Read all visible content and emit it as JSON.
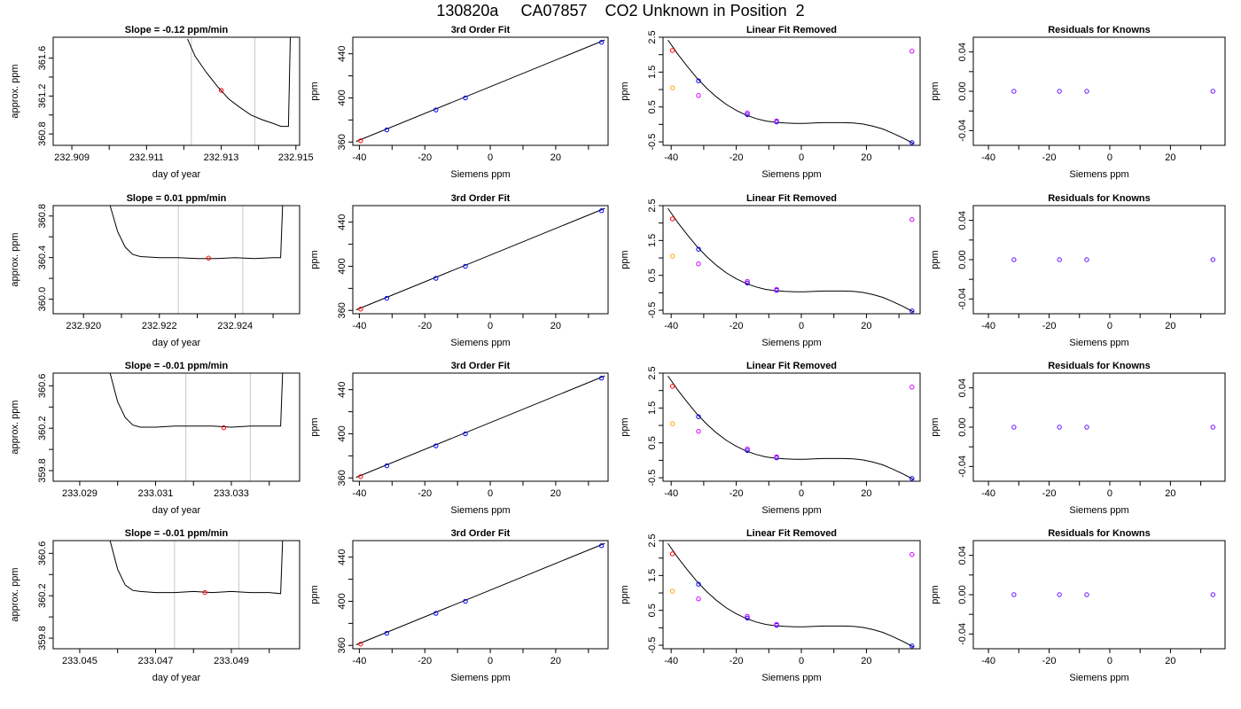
{
  "header": {
    "title": "130820a     CA07857    CO2 Unknown in Position  2"
  },
  "colors": {
    "axis": "#000000",
    "trace": "#000000",
    "window_lines": "#c8c8c8",
    "red": "#ff0000",
    "blue": "#0000ff",
    "orange": "#ffa500",
    "magenta": "#d000ff",
    "purple": "#6a0dff"
  },
  "chart_data": [
    {
      "type": "line",
      "title": "Slope =  -0.12  ppm/min",
      "xlabel": "day of year",
      "ylabel": "approx. ppm",
      "xlim": [
        232.9085,
        232.9151
      ],
      "ylim": [
        360.68,
        361.82
      ],
      "xticks": [
        "232.909",
        "232.911",
        "232.913",
        "232.915"
      ],
      "xtick_vals": [
        232.909,
        232.911,
        232.913,
        232.915
      ],
      "xminor": [
        232.91,
        232.912,
        232.914
      ],
      "yticks": [
        "360.8",
        "361.2",
        "361.6"
      ],
      "ytick_vals": [
        360.8,
        361.2,
        361.6
      ],
      "yminor": [
        361.0,
        361.4
      ],
      "vlines": [
        232.9122,
        232.9139
      ],
      "trace": {
        "x": [
          232.9121,
          232.9123,
          232.9126,
          232.9129,
          232.9132,
          232.9135,
          232.9138,
          232.9141,
          232.9144,
          232.9146,
          232.9148,
          232.91485
        ],
        "y": [
          361.8,
          361.62,
          361.45,
          361.3,
          361.17,
          361.08,
          361.0,
          360.95,
          360.91,
          360.88,
          360.88,
          361.82
        ]
      },
      "marker": {
        "x": 232.913,
        "y": 361.26
      }
    },
    {
      "type": "line",
      "title": "Slope =  0.01  ppm/min",
      "xlabel": "day of year",
      "ylabel": "approx. ppm",
      "xlim": [
        232.9192,
        232.9257
      ],
      "ylim": [
        359.86,
        360.9
      ],
      "xticks": [
        "232.920",
        "232.922",
        "232.924"
      ],
      "xtick_vals": [
        232.92,
        232.922,
        232.924
      ],
      "xminor": [
        232.921,
        232.923,
        232.925
      ],
      "yticks": [
        "360.0",
        "360.4",
        "360.8"
      ],
      "ytick_vals": [
        360.0,
        360.4,
        360.8
      ],
      "yminor": [
        360.2,
        360.6
      ],
      "vlines": [
        232.9225,
        232.9242
      ],
      "trace": {
        "x": [
          232.9207,
          232.9209,
          232.9211,
          232.9213,
          232.9215,
          232.922,
          232.9225,
          232.923,
          232.9235,
          232.924,
          232.9245,
          232.925,
          232.9252,
          232.92525
        ],
        "y": [
          360.9,
          360.65,
          360.5,
          360.43,
          360.41,
          360.4,
          360.4,
          360.39,
          360.39,
          360.4,
          360.39,
          360.4,
          360.4,
          360.9
        ]
      },
      "marker": {
        "x": 232.9233,
        "y": 360.395
      }
    },
    {
      "type": "line",
      "title": "Slope =  -0.01  ppm/min",
      "xlabel": "day of year",
      "ylabel": "approx. ppm",
      "xlim": [
        233.0283,
        233.0348
      ],
      "ylim": [
        359.7,
        360.72
      ],
      "xticks": [
        "233.029",
        "233.031",
        "233.033"
      ],
      "xtick_vals": [
        233.029,
        233.031,
        233.033
      ],
      "xminor": [
        233.03,
        233.032,
        233.034
      ],
      "yticks": [
        "359.8",
        "360.2",
        "360.6"
      ],
      "ytick_vals": [
        359.8,
        360.2,
        360.6
      ],
      "yminor": [
        360.0,
        360.4
      ],
      "vlines": [
        233.0318,
        233.0335
      ],
      "trace": {
        "x": [
          233.0298,
          233.03,
          233.0302,
          233.0304,
          233.0306,
          233.031,
          233.0315,
          233.032,
          233.0325,
          233.033,
          233.0335,
          233.034,
          233.0343,
          233.03435
        ],
        "y": [
          360.72,
          360.45,
          360.3,
          360.23,
          360.21,
          360.21,
          360.22,
          360.22,
          360.22,
          360.21,
          360.22,
          360.22,
          360.22,
          360.72
        ]
      },
      "marker": {
        "x": 233.0328,
        "y": 360.205
      }
    },
    {
      "type": "line",
      "title": "Slope =  -0.01  ppm/min",
      "xlabel": "day of year",
      "ylabel": "approx. ppm",
      "xlim": [
        233.0443,
        233.0508
      ],
      "ylim": [
        359.7,
        360.72
      ],
      "xticks": [
        "233.045",
        "233.047",
        "233.049"
      ],
      "xtick_vals": [
        233.045,
        233.047,
        233.049
      ],
      "xminor": [
        233.046,
        233.048,
        233.05
      ],
      "yticks": [
        "359.8",
        "360.2",
        "360.6"
      ],
      "ytick_vals": [
        359.8,
        360.2,
        360.6
      ],
      "yminor": [
        360.0,
        360.4
      ],
      "vlines": [
        233.0475,
        233.0492
      ],
      "trace": {
        "x": [
          233.0458,
          233.046,
          233.0462,
          233.0464,
          233.0466,
          233.047,
          233.0475,
          233.048,
          233.0485,
          233.049,
          233.0495,
          233.05,
          233.0503,
          233.05035
        ],
        "y": [
          360.72,
          360.45,
          360.3,
          360.25,
          360.24,
          360.23,
          360.23,
          360.24,
          360.23,
          360.24,
          360.23,
          360.23,
          360.22,
          360.72
        ]
      },
      "marker": {
        "x": 233.0483,
        "y": 360.23
      }
    },
    {
      "type": "scatter",
      "title": "3rd Order Fit",
      "xlabel": "Siemens ppm",
      "ylabel": "ppm",
      "xlim": [
        -42,
        36
      ],
      "ylim": [
        357,
        455
      ],
      "xticks": [
        "-40",
        "-20",
        "0",
        "20"
      ],
      "xtick_vals": [
        -40,
        -20,
        0,
        20
      ],
      "xminor": [
        -30,
        -10,
        10,
        30
      ],
      "yticks": [
        "360",
        "400",
        "440"
      ],
      "ytick_vals": [
        360,
        400,
        440
      ],
      "yminor": [
        380,
        420
      ],
      "fit_line": {
        "x": [
          -41,
          35
        ],
        "y": [
          360.5,
          452.5
        ]
      },
      "points": [
        {
          "x": -39.6,
          "y": 361.2,
          "color": "red"
        },
        {
          "x": -31.6,
          "y": 371.0,
          "color": "blue"
        },
        {
          "x": -16.6,
          "y": 389.1,
          "color": "blue"
        },
        {
          "x": -7.6,
          "y": 400.0,
          "color": "blue"
        },
        {
          "x": 34.0,
          "y": 450.4,
          "color": "blue"
        }
      ]
    },
    {
      "type": "scatter",
      "title": "Linear Fit Removed",
      "xlabel": "Siemens ppm",
      "ylabel": "ppm",
      "xlim": [
        -42.5,
        36.5
      ],
      "ylim": [
        -0.6,
        2.5
      ],
      "xticks": [
        "-40",
        "-20",
        "0",
        "20"
      ],
      "xtick_vals": [
        -40,
        -20,
        0,
        20
      ],
      "xminor": [
        -30,
        -10,
        10,
        30
      ],
      "yticks": [
        "-0.5",
        "0.5",
        "1.5",
        "2.5"
      ],
      "ytick_vals": [
        -0.5,
        0.5,
        1.5,
        2.5
      ],
      "yminor": [
        0,
        1,
        2
      ],
      "curve": {
        "x": [
          -41,
          -38,
          -35,
          -32,
          -29,
          -26,
          -23,
          -20,
          -17,
          -14,
          -11,
          -8,
          -5,
          -2,
          1,
          4,
          7,
          10,
          13,
          16,
          19,
          22,
          25,
          28,
          31,
          34.5
        ],
        "y": [
          2.42,
          2.02,
          1.66,
          1.32,
          1.03,
          0.78,
          0.57,
          0.4,
          0.27,
          0.17,
          0.1,
          0.06,
          0.04,
          0.03,
          0.03,
          0.04,
          0.05,
          0.05,
          0.05,
          0.04,
          0.01,
          -0.05,
          -0.13,
          -0.25,
          -0.38,
          -0.55
        ]
      },
      "points": [
        {
          "x": -39.6,
          "y": 2.12,
          "color": "red"
        },
        {
          "x": -39.6,
          "y": 1.05,
          "color": "orange"
        },
        {
          "x": -31.6,
          "y": 1.25,
          "color": "blue"
        },
        {
          "x": -31.6,
          "y": 0.83,
          "color": "magenta"
        },
        {
          "x": -16.6,
          "y": 0.28,
          "color": "blue"
        },
        {
          "x": -16.6,
          "y": 0.33,
          "color": "magenta"
        },
        {
          "x": -7.6,
          "y": 0.07,
          "color": "blue"
        },
        {
          "x": -7.6,
          "y": 0.1,
          "color": "magenta"
        },
        {
          "x": 34.0,
          "y": -0.52,
          "color": "blue"
        },
        {
          "x": 34.0,
          "y": 2.1,
          "color": "magenta"
        }
      ]
    },
    {
      "type": "scatter",
      "title": "Residuals for Knowns",
      "xlabel": "Siemens ppm",
      "ylabel": "ppm",
      "xlim": [
        -45,
        38
      ],
      "ylim": [
        -0.055,
        0.055
      ],
      "xticks": [
        "-40",
        "-20",
        "0",
        "20"
      ],
      "xtick_vals": [
        -40,
        -20,
        0,
        20
      ],
      "xminor": [
        -30,
        -10,
        10,
        30
      ],
      "yticks": [
        "-0.04",
        "0.00",
        "0.04"
      ],
      "ytick_vals": [
        -0.04,
        0.0,
        0.04
      ],
      "yminor": [
        -0.02,
        0.02
      ],
      "points": [
        {
          "x": -31.6,
          "y": 0.0,
          "color": "purple"
        },
        {
          "x": -16.6,
          "y": 0.0,
          "color": "purple"
        },
        {
          "x": -7.6,
          "y": 0.0,
          "color": "purple"
        },
        {
          "x": 34.0,
          "y": 0.0,
          "color": "purple"
        }
      ]
    }
  ],
  "layout_rows": [
    {
      "row": 0,
      "panels": [
        0,
        4,
        5,
        6
      ]
    },
    {
      "row": 1,
      "panels": [
        1,
        4,
        5,
        6
      ]
    },
    {
      "row": 2,
      "panels": [
        2,
        4,
        5,
        6
      ]
    },
    {
      "row": 3,
      "panels": [
        3,
        4,
        5,
        6
      ]
    }
  ]
}
